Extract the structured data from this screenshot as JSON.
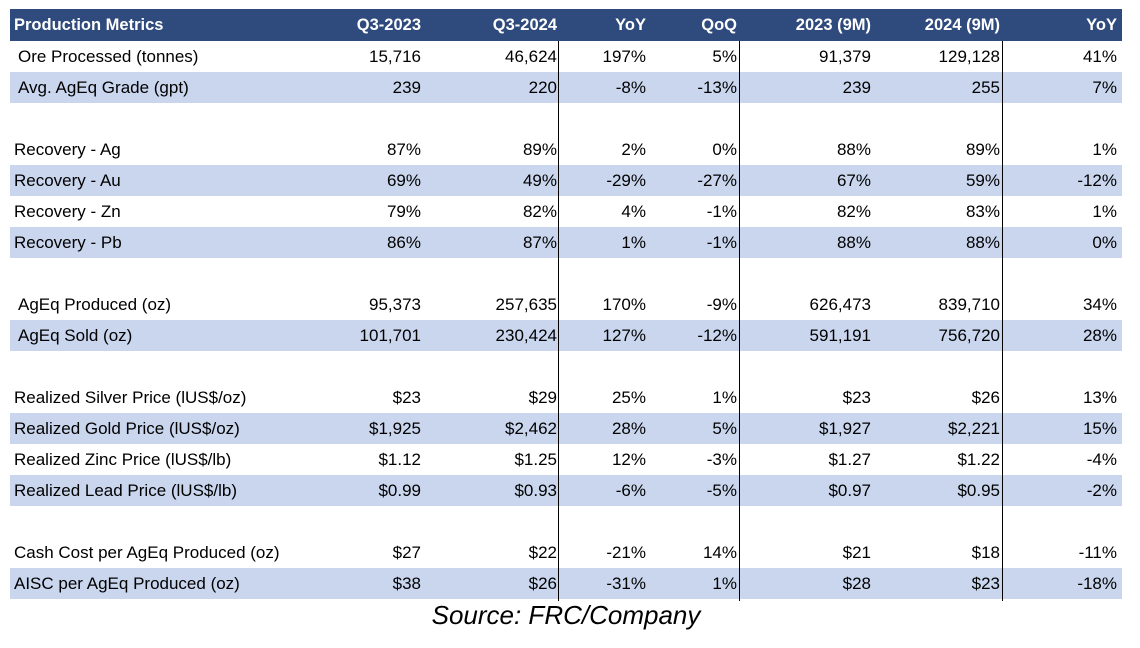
{
  "table": {
    "headers": [
      "Production Metrics",
      "Q3-2023",
      "Q3-2024",
      "YoY",
      "QoQ",
      "2023 (9M)",
      "2024 (9M)",
      "YoY"
    ],
    "rows": [
      {
        "label": "Ore Processed (tonnes)",
        "values": [
          "15,716",
          "46,624",
          "197%",
          "5%",
          "91,379",
          "129,128",
          "41%"
        ]
      },
      {
        "label": "Avg. AgEq Grade (gpt)",
        "values": [
          "239",
          "220",
          "-8%",
          "-13%",
          "239",
          "255",
          "7%"
        ]
      },
      {
        "label": "Recovery - Ag",
        "values": [
          "87%",
          "89%",
          "2%",
          "0%",
          "88%",
          "89%",
          "1%"
        ]
      },
      {
        "label": "Recovery - Au",
        "values": [
          "69%",
          "49%",
          "-29%",
          "-27%",
          "67%",
          "59%",
          "-12%"
        ]
      },
      {
        "label": "Recovery - Zn",
        "values": [
          "79%",
          "82%",
          "4%",
          "-1%",
          "82%",
          "83%",
          "1%"
        ]
      },
      {
        "label": "Recovery - Pb",
        "values": [
          "86%",
          "87%",
          "1%",
          "-1%",
          "88%",
          "88%",
          "0%"
        ]
      },
      {
        "label": "AgEq Produced (oz)",
        "values": [
          "95,373",
          "257,635",
          "170%",
          "-9%",
          "626,473",
          "839,710",
          "34%"
        ]
      },
      {
        "label": "AgEq Sold (oz)",
        "values": [
          "101,701",
          "230,424",
          "127%",
          "-12%",
          "591,191",
          "756,720",
          "28%"
        ]
      },
      {
        "label": "Realized Silver Price (lUS$/oz)",
        "values": [
          "$23",
          "$29",
          "25%",
          "1%",
          "$23",
          "$26",
          "13%"
        ]
      },
      {
        "label": "Realized Gold Price (lUS$/oz)",
        "values": [
          "$1,925",
          "$2,462",
          "28%",
          "5%",
          "$1,927",
          "$2,221",
          "15%"
        ]
      },
      {
        "label": "Realized Zinc Price (lUS$/lb)",
        "values": [
          "$1.12",
          "$1.25",
          "12%",
          "-3%",
          "$1.27",
          "$1.22",
          "-4%"
        ]
      },
      {
        "label": "Realized Lead Price (lUS$/lb)",
        "values": [
          "$0.99",
          "$0.93",
          "-6%",
          "-5%",
          "$0.97",
          "$0.95",
          "-2%"
        ]
      },
      {
        "label": "Cash Cost per AgEq Produced (oz)",
        "values": [
          "$27",
          "$22",
          "-21%",
          "14%",
          "$21",
          "$18",
          "-11%"
        ]
      },
      {
        "label": "AISC per AgEq Produced (oz)",
        "values": [
          "$38",
          "$26",
          "-31%",
          "1%",
          "$28",
          "$23",
          "-18%"
        ]
      }
    ]
  },
  "source": "Source: FRC/Company",
  "colors": {
    "header_bg": "#2f4a7c",
    "shade": "#c9d6ee"
  }
}
